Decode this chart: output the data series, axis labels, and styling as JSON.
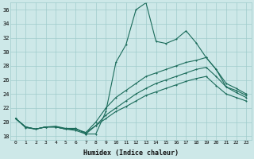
{
  "xlabel": "Humidex (Indice chaleur)",
  "background_color": "#cde8e8",
  "grid_color": "#a0cccc",
  "line_color": "#1a6b5a",
  "xlim": [
    -0.5,
    23.5
  ],
  "ylim": [
    17.5,
    37.0
  ],
  "yticks": [
    18,
    20,
    22,
    24,
    26,
    28,
    30,
    32,
    34,
    36
  ],
  "xticks": [
    0,
    1,
    2,
    3,
    4,
    5,
    6,
    7,
    8,
    9,
    10,
    11,
    12,
    13,
    14,
    15,
    16,
    17,
    18,
    19,
    20,
    21,
    22,
    23
  ],
  "line1_y": [
    20.5,
    19.2,
    19.0,
    19.3,
    19.4,
    19.1,
    19.1,
    18.3,
    18.3,
    21.5,
    28.5,
    31.0,
    36.0,
    37.0,
    31.5,
    31.2,
    31.8,
    33.0,
    31.3,
    29.2,
    27.5,
    25.0,
    24.2,
    23.5
  ],
  "line2_y": [
    20.5,
    19.3,
    19.0,
    19.3,
    19.3,
    19.0,
    19.0,
    18.5,
    20.0,
    22.0,
    23.5,
    24.5,
    25.5,
    26.5,
    27.0,
    27.5,
    28.0,
    28.5,
    28.8,
    29.2,
    27.5,
    25.5,
    24.8,
    24.0
  ],
  "line3_y": [
    20.5,
    19.3,
    19.0,
    19.3,
    19.3,
    19.0,
    19.0,
    18.5,
    19.5,
    21.0,
    22.0,
    23.0,
    24.0,
    24.8,
    25.5,
    26.0,
    26.5,
    27.0,
    27.5,
    27.8,
    26.5,
    25.0,
    24.5,
    23.8
  ],
  "line4_y": [
    20.5,
    19.3,
    19.0,
    19.3,
    19.3,
    19.0,
    18.8,
    18.3,
    19.5,
    20.5,
    21.5,
    22.2,
    23.0,
    23.8,
    24.3,
    24.8,
    25.3,
    25.8,
    26.2,
    26.5,
    25.2,
    24.0,
    23.5,
    23.0
  ]
}
